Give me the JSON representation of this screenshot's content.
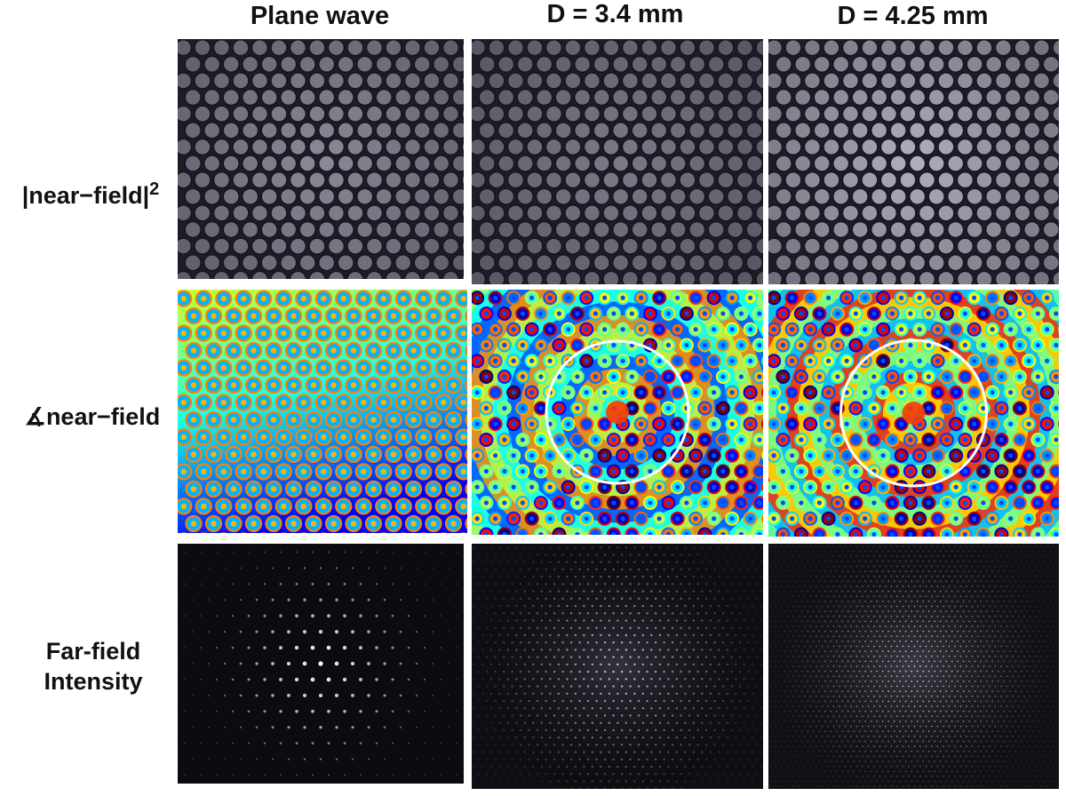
{
  "column_titles": [
    "Plane wave",
    "D = 3.4 mm",
    "D = 4.25 mm"
  ],
  "row_labels": {
    "near_field_intensity": {
      "text": "|near−field|",
      "superscript": "2"
    },
    "near_field_phase": "∡near−field",
    "far_field": [
      "Far-field",
      "Intensity"
    ]
  },
  "panels": [
    {
      "row": "near_field_intensity",
      "column": "Plane wave",
      "content": "hexagonal-lattice-intensity",
      "brightness": 0.55
    },
    {
      "row": "near_field_intensity",
      "column": "D = 3.4 mm",
      "content": "hexagonal-lattice-intensity",
      "brightness": 0.45
    },
    {
      "row": "near_field_intensity",
      "column": "D = 4.25 mm",
      "content": "hexagonal-lattice-intensity",
      "brightness": 0.8
    },
    {
      "row": "near_field_phase",
      "column": "Plane wave",
      "content": "phase-map-uniform",
      "colormap": "jet"
    },
    {
      "row": "near_field_phase",
      "column": "D = 3.4 mm",
      "content": "phase-map-curved",
      "colormap": "jet",
      "ring": "white-circle"
    },
    {
      "row": "near_field_phase",
      "column": "D = 4.25 mm",
      "content": "phase-map-curved",
      "colormap": "jet",
      "ring": "white-circle"
    },
    {
      "row": "far_field",
      "column": "Plane wave",
      "content": "sparse-diffraction-spots"
    },
    {
      "row": "far_field",
      "column": "D = 3.4 mm",
      "content": "dense-diffraction-spots"
    },
    {
      "row": "far_field",
      "column": "D = 4.25 mm",
      "content": "very-dense-diffraction-spots"
    }
  ],
  "colors": {
    "background": "#ffffff",
    "label": "#111111",
    "ring": "#ffffff"
  }
}
